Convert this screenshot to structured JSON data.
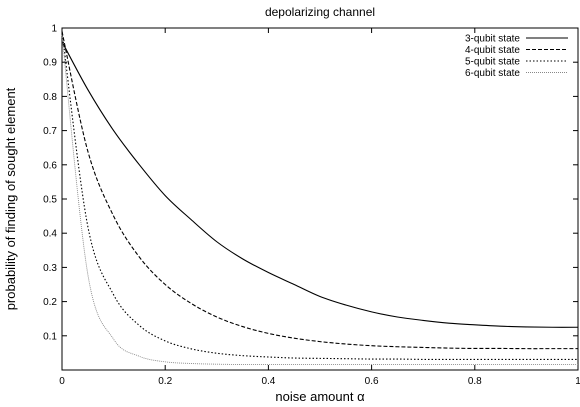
{
  "chart_data": {
    "type": "line",
    "title": "depolarizing channel",
    "xlabel": "noise amount α",
    "ylabel": "probability of finding of sought element",
    "xlim": [
      0,
      1
    ],
    "ylim": [
      0,
      1
    ],
    "xticks": [
      "0",
      "0.2",
      "0.4",
      "0.6",
      "0.8",
      "1"
    ],
    "yticks": [
      "0.1",
      "0.2",
      "0.3",
      "0.4",
      "0.5",
      "0.6",
      "0.7",
      "0.8",
      "0.9",
      "1"
    ],
    "grid": false,
    "legend_position": "top-right",
    "x": [
      0,
      0.05,
      0.1,
      0.15,
      0.2,
      0.25,
      0.3,
      0.35,
      0.4,
      0.45,
      0.5,
      0.55,
      0.6,
      0.65,
      0.7,
      0.75,
      0.8,
      0.85,
      0.9,
      0.95,
      1.0
    ],
    "series": [
      {
        "name": "3-qubit state",
        "dash": "solid",
        "color": "#000000",
        "values": [
          0.96,
          0.82,
          0.7,
          0.6,
          0.51,
          0.44,
          0.375,
          0.325,
          0.285,
          0.25,
          0.215,
          0.19,
          0.17,
          0.155,
          0.145,
          0.137,
          0.132,
          0.128,
          0.126,
          0.125,
          0.125
        ]
      },
      {
        "name": "4-qubit state",
        "dash": "dashed",
        "color": "#000000",
        "values": [
          0.99,
          0.64,
          0.45,
          0.33,
          0.25,
          0.195,
          0.155,
          0.127,
          0.107,
          0.093,
          0.083,
          0.076,
          0.071,
          0.068,
          0.066,
          0.064,
          0.063,
          0.063,
          0.0625,
          0.0625,
          0.0625
        ]
      },
      {
        "name": "5-qubit state",
        "dash": "dotted",
        "color": "#000000",
        "values": [
          0.99,
          0.42,
          0.22,
          0.13,
          0.085,
          0.062,
          0.049,
          0.042,
          0.038,
          0.035,
          0.034,
          0.033,
          0.032,
          0.032,
          0.031,
          0.031,
          0.031,
          0.031,
          0.031,
          0.031,
          0.031
        ]
      },
      {
        "name": "6-qubit state",
        "dash": "fine-dotted",
        "color": "#888888",
        "values": [
          0.98,
          0.28,
          0.09,
          0.04,
          0.024,
          0.019,
          0.017,
          0.016,
          0.016,
          0.016,
          0.016,
          0.016,
          0.016,
          0.016,
          0.016,
          0.016,
          0.016,
          0.016,
          0.016,
          0.016,
          0.016
        ]
      }
    ]
  }
}
